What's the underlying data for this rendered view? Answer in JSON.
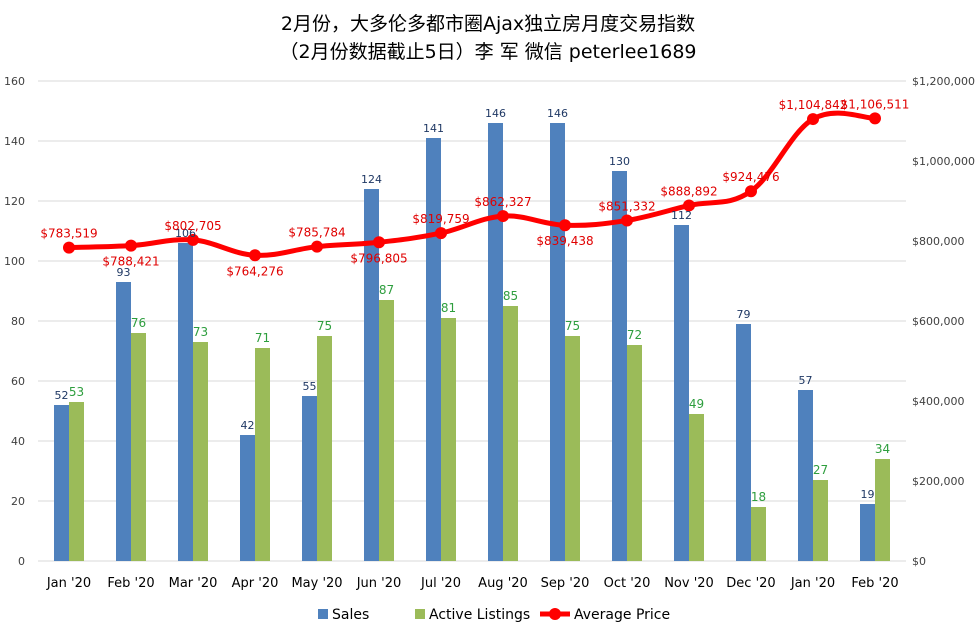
{
  "title_lines": [
    "2月份，大多伦多都市圈Ajax独立房月度交易指数",
    "（2月份数据截止5日）李 军 微信 peterlee1689"
  ],
  "chart_data": {
    "type": "bar",
    "categories": [
      "Jan '20",
      "Feb '20",
      "Mar '20",
      "Apr '20",
      "May '20",
      "Jun '20",
      "Jul '20",
      "Aug '20",
      "Sep '20",
      "Oct '20",
      "Nov '20",
      "Dec '20",
      "Jan '20",
      "Feb '20"
    ],
    "series": [
      {
        "name": "Sales",
        "type": "bar",
        "axis": "left",
        "color": "#4f81bd",
        "values": [
          52,
          93,
          106,
          42,
          55,
          124,
          141,
          146,
          146,
          130,
          112,
          79,
          57,
          19
        ]
      },
      {
        "name": "Active Listings",
        "type": "bar",
        "axis": "left",
        "color": "#9bbb59",
        "values": [
          53,
          76,
          73,
          71,
          75,
          87,
          81,
          85,
          75,
          72,
          49,
          18,
          27,
          34
        ]
      },
      {
        "name": "Average Price",
        "type": "line",
        "axis": "right",
        "color": "#ff0000",
        "values": [
          783519,
          788421,
          802705,
          764276,
          785784,
          796805,
          819759,
          862327,
          839438,
          851332,
          888892,
          924476,
          1104842,
          1106511
        ],
        "labels": [
          "$783,519",
          "$788,421",
          "$802,705",
          "$764,276",
          "$785,784",
          "$796,805",
          "$819,759",
          "$862,327",
          "$839,438",
          "$851,332",
          "$888,892",
          "$924,476",
          "$1,104,842",
          "$1,106,511"
        ]
      }
    ],
    "y_left": {
      "min": 0,
      "max": 160,
      "step": 20,
      "ticks": [
        "0",
        "20",
        "40",
        "60",
        "80",
        "100",
        "120",
        "140",
        "160"
      ]
    },
    "y_right": {
      "min": 0,
      "max": 1200000,
      "step": 200000,
      "ticks": [
        "$0",
        "$200,000",
        "$400,000",
        "$600,000",
        "$800,000",
        "$1,000,000",
        "$1,200,000"
      ]
    },
    "grid": true,
    "legend_position": "bottom",
    "legend": [
      "Sales",
      "Active Listings",
      "Average Price"
    ]
  }
}
